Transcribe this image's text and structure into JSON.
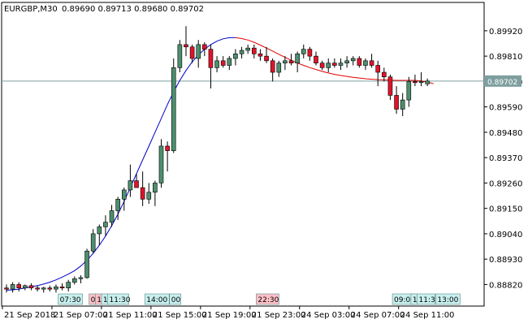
{
  "window": {
    "symbol_timeframe": "EURGBP,M30",
    "ohlc_text": "0.89690 0.89713 0.89680 0.89702"
  },
  "colors": {
    "background": "#ffffff",
    "frame": "#000000",
    "bull": "#4d8f6e",
    "bear": "#e0142c",
    "wick": "#000000",
    "curve_up": "#0000c8",
    "curve_down": "#e00000",
    "price_line": "#7f9f9f",
    "price_tag_bg": "#7f9f9f",
    "time_tag_bull": "#c8efee",
    "time_tag_bear": "#ffc0c8"
  },
  "chart_data": {
    "type": "candlestick",
    "ylim": [
      0.8873,
      0.8999
    ],
    "y_ticks": [
      "0.89920",
      "0.89810",
      "0.89700",
      "0.89590",
      "0.89480",
      "0.89370",
      "0.89260",
      "0.89150",
      "0.89040",
      "0.88930",
      "0.88820"
    ],
    "current_price": "0.89702",
    "x_ticks": [
      "21 Sep 2018",
      "21 Sep 07:00",
      "21 Sep 11:00",
      "21 Sep 15:00",
      "21 Sep 19:00",
      "21 Sep 23:00",
      "24 Sep 03:00",
      "24 Sep 07:00",
      "24 Sep 11:00"
    ],
    "time_tags": [
      {
        "label": "07:30",
        "type": "bull"
      },
      {
        "label": "0",
        "type": "bear"
      },
      {
        "label": "1",
        "type": "bear"
      },
      {
        "label": "1",
        "type": "bull"
      },
      {
        "label": "11:30",
        "type": "bull"
      },
      {
        "label": "14:00",
        "type": "bull"
      },
      {
        "label": "00",
        "type": "bull"
      },
      {
        "label": "22:30",
        "type": "bear"
      },
      {
        "label": "09:00",
        "type": "bull"
      },
      {
        "label": "1",
        "type": "bull"
      },
      {
        "label": "11:30",
        "type": "bull"
      },
      {
        "label": "13:00",
        "type": "bull"
      }
    ],
    "candles": [
      {
        "o": 0.88805,
        "h": 0.8882,
        "l": 0.88785,
        "c": 0.888
      },
      {
        "o": 0.888,
        "h": 0.8883,
        "l": 0.88785,
        "c": 0.8882
      },
      {
        "o": 0.8882,
        "h": 0.8883,
        "l": 0.8879,
        "c": 0.88805
      },
      {
        "o": 0.88805,
        "h": 0.8882,
        "l": 0.88795,
        "c": 0.88815
      },
      {
        "o": 0.88815,
        "h": 0.88825,
        "l": 0.88795,
        "c": 0.88805
      },
      {
        "o": 0.88805,
        "h": 0.88815,
        "l": 0.8879,
        "c": 0.888
      },
      {
        "o": 0.888,
        "h": 0.8881,
        "l": 0.88785,
        "c": 0.88805
      },
      {
        "o": 0.88805,
        "h": 0.88815,
        "l": 0.8879,
        "c": 0.888
      },
      {
        "o": 0.888,
        "h": 0.8882,
        "l": 0.88785,
        "c": 0.8881
      },
      {
        "o": 0.8881,
        "h": 0.88825,
        "l": 0.88795,
        "c": 0.88805
      },
      {
        "o": 0.88805,
        "h": 0.8884,
        "l": 0.8879,
        "c": 0.8883
      },
      {
        "o": 0.8883,
        "h": 0.88855,
        "l": 0.8882,
        "c": 0.88845
      },
      {
        "o": 0.88845,
        "h": 0.8886,
        "l": 0.88825,
        "c": 0.8885
      },
      {
        "o": 0.8885,
        "h": 0.88975,
        "l": 0.88845,
        "c": 0.88965
      },
      {
        "o": 0.88965,
        "h": 0.8906,
        "l": 0.88955,
        "c": 0.8904
      },
      {
        "o": 0.8904,
        "h": 0.8908,
        "l": 0.8899,
        "c": 0.8907
      },
      {
        "o": 0.8907,
        "h": 0.8912,
        "l": 0.8903,
        "c": 0.8909
      },
      {
        "o": 0.8909,
        "h": 0.89165,
        "l": 0.8907,
        "c": 0.8914
      },
      {
        "o": 0.8914,
        "h": 0.892,
        "l": 0.891,
        "c": 0.8919
      },
      {
        "o": 0.8919,
        "h": 0.8924,
        "l": 0.8914,
        "c": 0.8923
      },
      {
        "o": 0.8923,
        "h": 0.8934,
        "l": 0.892,
        "c": 0.8927
      },
      {
        "o": 0.8927,
        "h": 0.893,
        "l": 0.8924,
        "c": 0.8924
      },
      {
        "o": 0.8924,
        "h": 0.8931,
        "l": 0.8916,
        "c": 0.8919
      },
      {
        "o": 0.8919,
        "h": 0.8926,
        "l": 0.8917,
        "c": 0.8922
      },
      {
        "o": 0.8922,
        "h": 0.8927,
        "l": 0.8916,
        "c": 0.8926
      },
      {
        "o": 0.8926,
        "h": 0.8945,
        "l": 0.8924,
        "c": 0.8942
      },
      {
        "o": 0.8942,
        "h": 0.8944,
        "l": 0.8931,
        "c": 0.894
      },
      {
        "o": 0.894,
        "h": 0.898,
        "l": 0.8939,
        "c": 0.8976
      },
      {
        "o": 0.8976,
        "h": 0.8988,
        "l": 0.8974,
        "c": 0.8986
      },
      {
        "o": 0.8986,
        "h": 0.8994,
        "l": 0.8981,
        "c": 0.8985
      },
      {
        "o": 0.8985,
        "h": 0.8986,
        "l": 0.8978,
        "c": 0.898
      },
      {
        "o": 0.898,
        "h": 0.8988,
        "l": 0.8976,
        "c": 0.8986
      },
      {
        "o": 0.8986,
        "h": 0.8987,
        "l": 0.8981,
        "c": 0.8984
      },
      {
        "o": 0.8984,
        "h": 0.8986,
        "l": 0.8967,
        "c": 0.8976
      },
      {
        "o": 0.8976,
        "h": 0.8981,
        "l": 0.8974,
        "c": 0.8979
      },
      {
        "o": 0.8979,
        "h": 0.8981,
        "l": 0.8976,
        "c": 0.8977
      },
      {
        "o": 0.8977,
        "h": 0.8981,
        "l": 0.8975,
        "c": 0.898
      },
      {
        "o": 0.898,
        "h": 0.8984,
        "l": 0.8977,
        "c": 0.8982
      },
      {
        "o": 0.8982,
        "h": 0.8985,
        "l": 0.898,
        "c": 0.89835
      },
      {
        "o": 0.89835,
        "h": 0.8986,
        "l": 0.8982,
        "c": 0.89845
      },
      {
        "o": 0.89845,
        "h": 0.8986,
        "l": 0.898,
        "c": 0.8982
      },
      {
        "o": 0.8982,
        "h": 0.8984,
        "l": 0.8979,
        "c": 0.8981
      },
      {
        "o": 0.8981,
        "h": 0.8985,
        "l": 0.8978,
        "c": 0.8979
      },
      {
        "o": 0.8979,
        "h": 0.898,
        "l": 0.897,
        "c": 0.8974
      },
      {
        "o": 0.8974,
        "h": 0.8979,
        "l": 0.8972,
        "c": 0.8978
      },
      {
        "o": 0.8978,
        "h": 0.8981,
        "l": 0.8975,
        "c": 0.8979
      },
      {
        "o": 0.8979,
        "h": 0.8982,
        "l": 0.8977,
        "c": 0.8978
      },
      {
        "o": 0.8978,
        "h": 0.8983,
        "l": 0.8974,
        "c": 0.8982
      },
      {
        "o": 0.8982,
        "h": 0.8986,
        "l": 0.898,
        "c": 0.8984
      },
      {
        "o": 0.8984,
        "h": 0.8985,
        "l": 0.8979,
        "c": 0.8981
      },
      {
        "o": 0.8981,
        "h": 0.8983,
        "l": 0.8977,
        "c": 0.8978
      },
      {
        "o": 0.8978,
        "h": 0.8979,
        "l": 0.8975,
        "c": 0.8976
      },
      {
        "o": 0.8976,
        "h": 0.898,
        "l": 0.8974,
        "c": 0.8978
      },
      {
        "o": 0.8978,
        "h": 0.898,
        "l": 0.8976,
        "c": 0.8977
      },
      {
        "o": 0.8977,
        "h": 0.898,
        "l": 0.8975,
        "c": 0.8978
      },
      {
        "o": 0.8978,
        "h": 0.8981,
        "l": 0.8976,
        "c": 0.8979
      },
      {
        "o": 0.8979,
        "h": 0.8981,
        "l": 0.8977,
        "c": 0.898
      },
      {
        "o": 0.898,
        "h": 0.8981,
        "l": 0.8976,
        "c": 0.8977
      },
      {
        "o": 0.8977,
        "h": 0.898,
        "l": 0.8975,
        "c": 0.8979
      },
      {
        "o": 0.8979,
        "h": 0.8982,
        "l": 0.8976,
        "c": 0.8977
      },
      {
        "o": 0.8977,
        "h": 0.8979,
        "l": 0.8968,
        "c": 0.8974
      },
      {
        "o": 0.8974,
        "h": 0.8976,
        "l": 0.897,
        "c": 0.8972
      },
      {
        "o": 0.8972,
        "h": 0.8973,
        "l": 0.8962,
        "c": 0.8964
      },
      {
        "o": 0.8964,
        "h": 0.8968,
        "l": 0.8956,
        "c": 0.8958
      },
      {
        "o": 0.8958,
        "h": 0.8965,
        "l": 0.8955,
        "c": 0.8962
      },
      {
        "o": 0.8962,
        "h": 0.8972,
        "l": 0.8959,
        "c": 0.897
      },
      {
        "o": 0.897,
        "h": 0.8973,
        "l": 0.8968,
        "c": 0.89695
      },
      {
        "o": 0.89695,
        "h": 0.8974,
        "l": 0.8968,
        "c": 0.897
      },
      {
        "o": 0.8969,
        "h": 0.89713,
        "l": 0.8968,
        "c": 0.89702
      }
    ],
    "curve": [
      0.88795,
      0.88797,
      0.888,
      0.88805,
      0.8881,
      0.88815,
      0.88822,
      0.8883,
      0.8884,
      0.88852,
      0.88865,
      0.8888,
      0.889,
      0.88925,
      0.88955,
      0.8899,
      0.8903,
      0.89075,
      0.89125,
      0.8918,
      0.8924,
      0.893,
      0.8936,
      0.8942,
      0.8948,
      0.8954,
      0.896,
      0.89655,
      0.89705,
      0.89748,
      0.89785,
      0.89815,
      0.8984,
      0.8986,
      0.89875,
      0.89885,
      0.8989,
      0.8989,
      0.89886,
      0.8988,
      0.8987,
      0.89858,
      0.89845,
      0.89832,
      0.89818,
      0.89805,
      0.89792,
      0.8978,
      0.8977,
      0.8976,
      0.89752,
      0.89744,
      0.89737,
      0.89731,
      0.89726,
      0.89722,
      0.89718,
      0.89715,
      0.89712,
      0.8971,
      0.89708,
      0.89707,
      0.89706,
      0.89705,
      0.89705,
      0.89705,
      0.89705,
      0.89702,
      0.89698,
      0.8969
    ]
  }
}
